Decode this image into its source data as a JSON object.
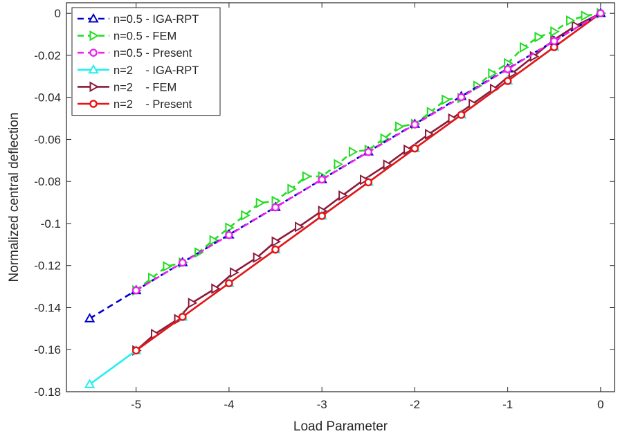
{
  "chart_data": {
    "type": "line",
    "title": "",
    "xlabel": "Load Parameter",
    "ylabel": "Normalized central deflection",
    "xlim": [
      -5.75,
      0.15
    ],
    "ylim": [
      -0.18,
      0.005
    ],
    "xticks": [
      -5,
      -4,
      -3,
      -2,
      -1,
      0
    ],
    "yticks": [
      0,
      -0.02,
      -0.04,
      -0.06,
      -0.08,
      -0.1,
      -0.12,
      -0.14,
      -0.16,
      -0.18
    ],
    "xtick_labels": [
      "-5",
      "-4",
      "-3",
      "-2",
      "-1",
      "0"
    ],
    "ytick_labels": [
      "0",
      "-0.02",
      "-0.04",
      "-0.06",
      "-0.08",
      "-0.1",
      "-0.12",
      "-0.14",
      "-0.16",
      "-0.18"
    ],
    "grid": false,
    "legend_position": "top-left",
    "series": [
      {
        "name": "n=0.5 - IGA-RPT",
        "color": "#0000cc",
        "line": "dashed",
        "marker": "triangle-up",
        "x": [
          -5.5,
          -5,
          -4.5,
          -4,
          -3.5,
          -3,
          -2.5,
          -2,
          -1.5,
          -1,
          -0.5,
          0
        ],
        "y": [
          -0.1452,
          -0.1318,
          -0.1185,
          -0.1053,
          -0.0922,
          -0.079,
          -0.0658,
          -0.0527,
          -0.0395,
          -0.0263,
          -0.0132,
          0
        ]
      },
      {
        "name": "n=0.5 - FEM",
        "color": "#22dd22",
        "line": "dashed",
        "marker": "triangle-right",
        "x": [
          -5,
          -4.83,
          -4.67,
          -4.5,
          -4.33,
          -4.17,
          -4,
          -3.83,
          -3.67,
          -3.5,
          -3.33,
          -3.17,
          -3,
          -2.83,
          -2.67,
          -2.5,
          -2.33,
          -2.17,
          -2,
          -1.83,
          -1.67,
          -1.5,
          -1.33,
          -1.17,
          -1,
          -0.83,
          -0.67,
          -0.5,
          -0.33,
          -0.17,
          0
        ],
        "y": [
          -0.1318,
          -0.1259,
          -0.1204,
          -0.1186,
          -0.1138,
          -0.108,
          -0.102,
          -0.0961,
          -0.0902,
          -0.0893,
          -0.0836,
          -0.0776,
          -0.0776,
          -0.0718,
          -0.0659,
          -0.065,
          -0.0596,
          -0.0539,
          -0.0527,
          -0.047,
          -0.0411,
          -0.0403,
          -0.0345,
          -0.0286,
          -0.0238,
          -0.0162,
          -0.0113,
          -0.0087,
          -0.0035,
          -0.0012,
          0
        ]
      },
      {
        "name": "n=0.5 - Present",
        "color": "#ee22ee",
        "line": "dashed",
        "marker": "circle",
        "x": [
          -5,
          -4.5,
          -4,
          -3.5,
          -3,
          -2.5,
          -2,
          -1.5,
          -1,
          -0.5,
          0
        ],
        "y": [
          -0.1318,
          -0.1186,
          -0.1055,
          -0.0923,
          -0.0791,
          -0.066,
          -0.0529,
          -0.0399,
          -0.0266,
          -0.0132,
          0
        ]
      },
      {
        "name": "n=2    - IGA-RPT",
        "color": "#22eeee",
        "line": "solid",
        "marker": "triangle-up",
        "x": [
          -5.5,
          -5,
          -4.5,
          -4,
          -3.5,
          -3,
          -2.5,
          -2,
          -1.5,
          -1,
          -0.5,
          0
        ],
        "y": [
          -0.1765,
          -0.1604,
          -0.1444,
          -0.1284,
          -0.1124,
          -0.0963,
          -0.0803,
          -0.0643,
          -0.0482,
          -0.0321,
          -0.016,
          0
        ]
      },
      {
        "name": "n=2    - FEM",
        "color": "#8b1a3a",
        "line": "solid",
        "marker": "triangle-right",
        "x": [
          -5,
          -4.8,
          -4.55,
          -4.4,
          -4.15,
          -3.95,
          -3.7,
          -3.5,
          -3.25,
          -3,
          -2.78,
          -2.55,
          -2.3,
          -2.08,
          -1.85,
          -1.6,
          -1.38,
          -1.15,
          -0.95,
          -0.72,
          -0.5,
          -0.27,
          0
        ],
        "y": [
          -0.1604,
          -0.1526,
          -0.1455,
          -0.1378,
          -0.131,
          -0.1233,
          -0.1162,
          -0.1086,
          -0.1016,
          -0.094,
          -0.0867,
          -0.0792,
          -0.072,
          -0.0649,
          -0.0575,
          -0.0501,
          -0.0431,
          -0.036,
          -0.0285,
          -0.0205,
          -0.0125,
          -0.006,
          0
        ]
      },
      {
        "name": "n=2    - Present",
        "color": "#ee1111",
        "line": "solid",
        "marker": "circle",
        "x": [
          -5,
          -4.5,
          -4,
          -3.5,
          -3,
          -2.5,
          -2,
          -1.5,
          -1,
          -0.5,
          0
        ],
        "y": [
          -0.1604,
          -0.1444,
          -0.1284,
          -0.1124,
          -0.0964,
          -0.0804,
          -0.0643,
          -0.0483,
          -0.0322,
          -0.0161,
          0
        ]
      }
    ]
  }
}
